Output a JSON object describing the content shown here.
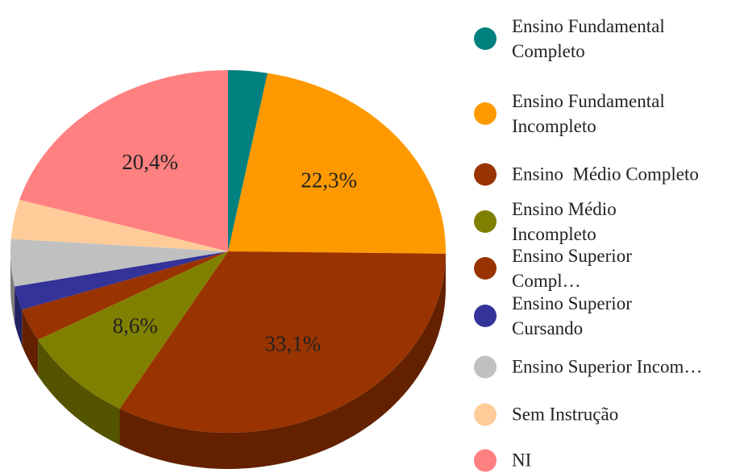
{
  "chart_data": {
    "type": "pie",
    "categories": [
      "Ensino Fundamental Completo",
      "Ensino Fundamental Incompleto",
      "Ensino  Médio Completo",
      "Ensino Médio Incompleto",
      "Ensino Superior Compl…",
      "Ensino Superior Cursando",
      "Ensino Superior Incom…",
      "Sem Instrução",
      "NI"
    ],
    "values": [
      2.9,
      22.3,
      33.1,
      8.6,
      2.9,
      2.1,
      4.2,
      3.5,
      20.4
    ],
    "value_labels": [
      null,
      "22,3%",
      "33,1%",
      "8,6%",
      null,
      null,
      null,
      null,
      "20,4%"
    ],
    "colors": [
      "#00807f",
      "#ff9900",
      "#993300",
      "#808000",
      "#993300",
      "#333399",
      "#c0c0c0",
      "#ffcc99",
      "#ff8080"
    ],
    "legend": "right"
  }
}
